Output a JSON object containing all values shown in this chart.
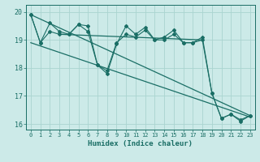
{
  "xlabel": "Humidex (Indice chaleur)",
  "xlim": [
    -0.5,
    23.5
  ],
  "ylim": [
    15.8,
    20.25
  ],
  "yticks": [
    16,
    17,
    18,
    19,
    20
  ],
  "xticks": [
    0,
    1,
    2,
    3,
    4,
    5,
    6,
    7,
    8,
    9,
    10,
    11,
    12,
    13,
    14,
    15,
    16,
    17,
    18,
    19,
    20,
    21,
    22,
    23
  ],
  "background_color": "#cceae8",
  "grid_color": "#aad4d0",
  "line_color": "#1a6e65",
  "line1": [
    19.9,
    18.9,
    19.6,
    19.3,
    19.2,
    19.55,
    19.5,
    18.1,
    17.8,
    18.85,
    19.5,
    19.2,
    19.45,
    19.0,
    19.1,
    19.35,
    18.9,
    18.9,
    19.1,
    17.1,
    16.2,
    16.35,
    16.1,
    16.3
  ],
  "line2": [
    19.9,
    18.9,
    19.3,
    19.2,
    19.2,
    19.55,
    19.3,
    18.1,
    17.9,
    18.9,
    19.2,
    19.1,
    19.35,
    19.0,
    19.0,
    19.2,
    18.9,
    18.9,
    19.0,
    17.1,
    16.2,
    16.35,
    16.15,
    16.3
  ],
  "trend1_x": [
    0,
    23
  ],
  "trend1_y": [
    19.9,
    16.3
  ],
  "trend2_x": [
    0,
    23
  ],
  "trend2_y": [
    18.9,
    16.25
  ],
  "trend3_x": [
    3,
    18
  ],
  "trend3_y": [
    19.2,
    19.0
  ]
}
